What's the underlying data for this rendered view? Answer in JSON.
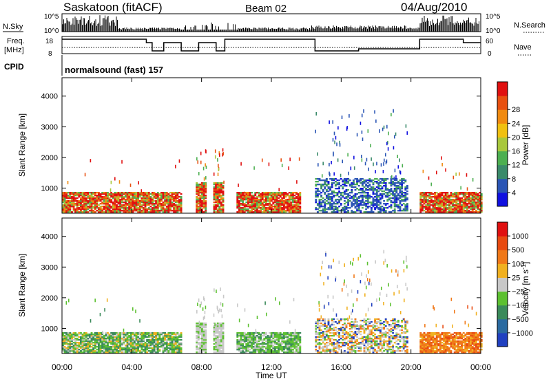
{
  "header": {
    "station": "Saskatoon (fitACF)",
    "beam": "Beam 02",
    "date": "04/Aug/2010"
  },
  "status_labels": {
    "nsky": "N.Sky",
    "nsky_hi": "10^5",
    "nsky_lo": "10^0",
    "nsearch": "N.Search",
    "nsearch_hi": "10^5",
    "nsearch_lo": "10^0",
    "freq_line1": "Freq.",
    "freq_line2": "[MHz]",
    "freq_hi": "18",
    "freq_lo": "8",
    "nave": "Nave",
    "nave_hi": "60",
    "nave_lo": "0",
    "cpid": "CPID",
    "program": "normalsound (fast) 157"
  },
  "chart_data": [
    {
      "type": "heatmap",
      "title": "",
      "ylabel": "Slant Range [km]",
      "yticks": [
        "1000",
        "2000",
        "3000",
        "4000"
      ],
      "ylim": [
        180,
        4600
      ],
      "colorbar": {
        "label": "Power [dB]",
        "ticks": [
          "4",
          "8",
          "12",
          "16",
          "20",
          "24",
          "28"
        ],
        "colors": [
          "#1010e0",
          "#2a55b5",
          "#3a8a6a",
          "#4caf50",
          "#a8c83c",
          "#f0c010",
          "#f08a10",
          "#e85010",
          "#e01010"
        ]
      },
      "segments": [
        {
          "start": "00:00",
          "end": "06:50",
          "band_km": [
            200,
            850
          ],
          "dominant": "high power, red/orange"
        },
        {
          "start": "07:40",
          "end": "08:15",
          "band_km": [
            200,
            1150
          ],
          "dominant": "high power"
        },
        {
          "start": "08:40",
          "end": "09:15",
          "band_km": [
            200,
            1150
          ],
          "dominant": "high power"
        },
        {
          "start": "10:00",
          "end": "13:40",
          "band_km": [
            200,
            850
          ],
          "dominant": "high power"
        },
        {
          "start": "14:30",
          "end": "19:50",
          "band_km": [
            200,
            1300
          ],
          "dominant": "low power, blue scatter"
        },
        {
          "start": "20:30",
          "end": "24:00",
          "band_km": [
            200,
            850
          ],
          "dominant": "high power, red/orange"
        }
      ]
    },
    {
      "type": "heatmap",
      "title": "",
      "ylabel": "Slant Range [km]",
      "yticks": [
        "1000",
        "2000",
        "3000",
        "4000"
      ],
      "ylim": [
        180,
        4600
      ],
      "xlabel": "Time UT",
      "xticks": [
        "00:00",
        "04:00",
        "08:00",
        "12:00",
        "16:00",
        "20:00",
        "00:00"
      ],
      "colorbar": {
        "label": "Velocity [m s^-1]",
        "ticks": [
          "1000",
          "500",
          "100",
          "25",
          "−25",
          "−100",
          "−500",
          "−1000"
        ],
        "colors": [
          "#2040c0",
          "#2a6aa0",
          "#3a8a5a",
          "#5cc030",
          "#c8c8c8",
          "#f0b020",
          "#f07818",
          "#e84a10",
          "#e01010"
        ]
      },
      "segments": [
        {
          "start": "00:00",
          "end": "06:50",
          "band_km": [
            200,
            850
          ],
          "dominant": "green/teal with gray"
        },
        {
          "start": "07:40",
          "end": "08:15",
          "band_km": [
            200,
            1150
          ],
          "dominant": "gray"
        },
        {
          "start": "08:40",
          "end": "09:15",
          "band_km": [
            200,
            1150
          ],
          "dominant": "gray"
        },
        {
          "start": "10:00",
          "end": "13:40",
          "band_km": [
            200,
            850
          ],
          "dominant": "green with gray"
        },
        {
          "start": "14:30",
          "end": "19:50",
          "band_km": [
            200,
            1300
          ],
          "dominant": "gray/orange scatter"
        },
        {
          "start": "20:30",
          "end": "24:00",
          "band_km": [
            200,
            850
          ],
          "dominant": "orange"
        }
      ]
    }
  ]
}
